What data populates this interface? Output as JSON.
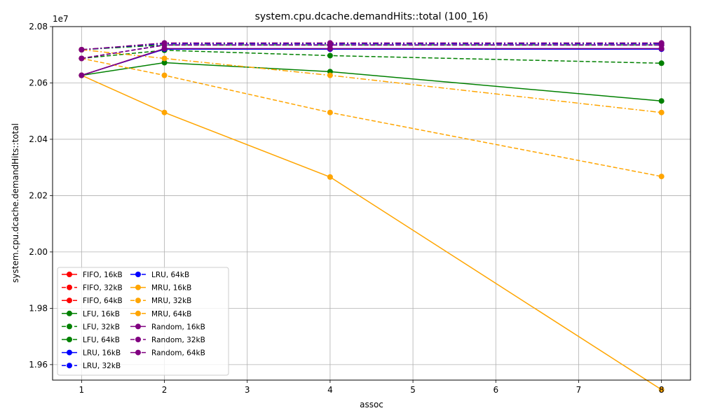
{
  "chart_data": {
    "type": "line",
    "title": "system.cpu.dcache.demandHits::total (100_16)",
    "xlabel": "assoc",
    "ylabel": "system.cpu.dcache.demandHits::total",
    "y_offset_label": "1e7",
    "y_scale": 10000000,
    "x": [
      1,
      2,
      4,
      8
    ],
    "xlim": [
      0.65,
      8.35
    ],
    "ylim": [
      19.545,
      20.8
    ],
    "xticks": [
      1,
      2,
      3,
      4,
      5,
      6,
      7,
      8
    ],
    "xtick_labels": [
      "1",
      "2",
      "3",
      "4",
      "5",
      "6",
      "7",
      "8"
    ],
    "yticks": [
      19.6,
      19.8,
      20.0,
      20.2,
      20.4,
      20.6,
      20.8
    ],
    "ytick_labels": [
      "1.96",
      "1.98",
      "2.00",
      "2.02",
      "2.04",
      "2.06",
      "2.08"
    ],
    "grid": true,
    "legend_placement": "lower-left",
    "legend_columns": 2,
    "series": [
      {
        "name": "FIFO, 16kB",
        "color": "#ff0000",
        "dash": "solid",
        "values": [
          20.627,
          20.72,
          20.72,
          20.72
        ]
      },
      {
        "name": "FIFO, 32kB",
        "color": "#ff0000",
        "dash": "dashed",
        "values": [
          20.687,
          20.735,
          20.735,
          20.735
        ]
      },
      {
        "name": "FIFO, 64kB",
        "color": "#ff0000",
        "dash": "dashdot",
        "values": [
          20.718,
          20.74,
          20.74,
          20.74
        ]
      },
      {
        "name": "LFU, 16kB",
        "color": "#008000",
        "dash": "solid",
        "values": [
          20.627,
          20.672,
          20.64,
          20.536
        ]
      },
      {
        "name": "LFU, 32kB",
        "color": "#008000",
        "dash": "dashed",
        "values": [
          20.687,
          20.716,
          20.697,
          20.67
        ]
      },
      {
        "name": "LFU, 64kB",
        "color": "#008000",
        "dash": "dashdot",
        "values": [
          20.718,
          20.735,
          20.735,
          20.735
        ]
      },
      {
        "name": "LRU, 16kB",
        "color": "#0000ff",
        "dash": "solid",
        "values": [
          20.627,
          20.72,
          20.72,
          20.72
        ]
      },
      {
        "name": "LRU, 32kB",
        "color": "#0000ff",
        "dash": "dashed",
        "values": [
          20.687,
          20.735,
          20.735,
          20.735
        ]
      },
      {
        "name": "LRU, 64kB",
        "color": "#0000ff",
        "dash": "dashdot",
        "values": [
          20.718,
          20.74,
          20.74,
          20.74
        ]
      },
      {
        "name": "MRU, 16kB",
        "color": "#ffa500",
        "dash": "solid",
        "values": [
          20.627,
          20.495,
          20.266,
          19.511
        ]
      },
      {
        "name": "MRU, 32kB",
        "color": "#ffa500",
        "dash": "dashed",
        "values": [
          20.687,
          20.627,
          20.495,
          20.268
        ]
      },
      {
        "name": "MRU, 64kB",
        "color": "#ffa500",
        "dash": "dashdot",
        "values": [
          20.718,
          20.687,
          20.627,
          20.495
        ]
      },
      {
        "name": "Random, 16kB",
        "color": "#800080",
        "dash": "solid",
        "values": [
          20.627,
          20.722,
          20.722,
          20.722
        ]
      },
      {
        "name": "Random, 32kB",
        "color": "#800080",
        "dash": "dashed",
        "values": [
          20.687,
          20.734,
          20.734,
          20.734
        ]
      },
      {
        "name": "Random, 64kB",
        "color": "#800080",
        "dash": "dashdot",
        "values": [
          20.718,
          20.742,
          20.742,
          20.742
        ]
      }
    ]
  }
}
